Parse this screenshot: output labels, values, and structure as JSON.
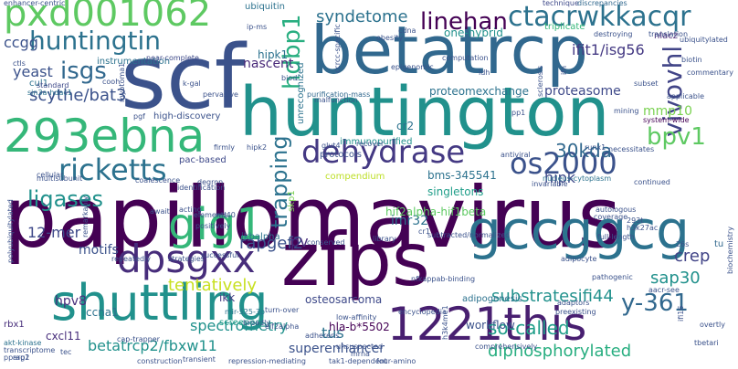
{
  "words": [
    {
      "text": "papillomavirus",
      "color": "#440154"
    },
    {
      "text": "scf",
      "color": "#3b528b"
    },
    {
      "text": "huntington",
      "color": "#21918c"
    },
    {
      "text": "betatrcp",
      "color": "#31688e"
    },
    {
      "text": "zfps",
      "color": "#440154"
    },
    {
      "text": "293ebna",
      "color": "#35b779"
    },
    {
      "text": "shuttling",
      "color": "#21918c"
    },
    {
      "text": "gccggcg",
      "color": "#2c728e"
    },
    {
      "text": "1221this",
      "color": "#481f70"
    },
    {
      "text": "pxd001062",
      "color": "#5ec962"
    },
    {
      "text": "dehydrase",
      "color": "#443983"
    },
    {
      "text": "gig1",
      "color": "#35b779"
    },
    {
      "text": "dpsgxx",
      "color": "#472d7b"
    },
    {
      "text": "ricketts",
      "color": "#2c728e"
    },
    {
      "text": "os2000",
      "color": "#3b528b"
    },
    {
      "text": "huntingtin",
      "color": "#2c728e"
    },
    {
      "text": "ctacrwkkacqr",
      "color": "#2c728e"
    },
    {
      "text": "vivovhl",
      "color": "#414487"
    },
    {
      "text": "linehan",
      "color": "#440154"
    },
    {
      "text": "hdbp1",
      "color": "#28ae80"
    },
    {
      "text": "isgs",
      "color": "#31688e"
    },
    {
      "text": "bpv1",
      "color": "#5ec962"
    },
    {
      "text": "y-361",
      "color": "#31688e"
    },
    {
      "text": "trapping",
      "color": "#2c728e"
    },
    {
      "text": "syndetome",
      "color": "#2c728e"
    },
    {
      "text": "scythe/bat3",
      "color": "#3b528b"
    },
    {
      "text": "ligases",
      "color": "#21918c"
    },
    {
      "text": "tentatively",
      "color": "#c8e020"
    },
    {
      "text": "30kda",
      "color": "#31688e"
    },
    {
      "text": "so-called",
      "color": "#1f9e89"
    },
    {
      "text": "crep",
      "color": "#414487"
    },
    {
      "text": "substratesifi44",
      "color": "#21918c"
    },
    {
      "text": "sap30",
      "color": "#21918c"
    },
    {
      "text": "diphosphorylated",
      "color": "#28ae80"
    },
    {
      "text": "spectrometry",
      "color": "#21918c"
    },
    {
      "text": "rapgef2",
      "color": "#3b528b"
    },
    {
      "text": "betatrcp2/fbxw11",
      "color": "#21918c"
    },
    {
      "text": "ifit1/isg56",
      "color": "#443983"
    },
    {
      "text": "12-mer",
      "color": "#3e4989"
    },
    {
      "text": "motifs",
      "color": "#3b528b"
    },
    {
      "text": "superenhancer",
      "color": "#3b528b"
    },
    {
      "text": "tus",
      "color": "#2c728e"
    },
    {
      "text": "mmp10",
      "color": "#7ad151"
    },
    {
      "text": "hpv8",
      "color": "#472d7b"
    },
    {
      "text": "ccgg",
      "color": "#3b528b"
    },
    {
      "text": "yeast",
      "color": "#3b528b"
    },
    {
      "text": "nascent",
      "color": "#482878"
    },
    {
      "text": "hipk",
      "color": "#3e4989"
    },
    {
      "text": "imr32",
      "color": "#2c728e"
    },
    {
      "text": "hif2alpha-hif1beta",
      "color": "#5ec962"
    },
    {
      "text": "pv",
      "color": "#472d7b"
    },
    {
      "text": "proteasome",
      "color": "#3e4989"
    },
    {
      "text": "proteomexchange",
      "color": "#2c728e"
    },
    {
      "text": "ubiquitin",
      "color": "#2c728e"
    },
    {
      "text": "one-hybrid",
      "color": "#21918c"
    },
    {
      "text": "hipk1",
      "color": "#2c728e"
    },
    {
      "text": "cr2",
      "color": "#2c728e"
    },
    {
      "text": "bms-345541",
      "color": "#2c728e"
    },
    {
      "text": "singletons",
      "color": "#1f9e89"
    },
    {
      "text": "ikk",
      "color": "#443983"
    },
    {
      "text": "ccna1",
      "color": "#2c728e"
    },
    {
      "text": "cxcl11",
      "color": "#472d7b"
    },
    {
      "text": "workflow",
      "color": "#3b528b"
    },
    {
      "text": "osteosarcoma",
      "color": "#3e4989"
    },
    {
      "text": "hla-b*5502",
      "color": "#440154"
    },
    {
      "text": "instrumentation",
      "color": "#2c728e"
    },
    {
      "text": "high-discovery",
      "color": "#3b528b"
    },
    {
      "text": "immunopurified",
      "color": "#21918c"
    },
    {
      "text": "compendium",
      "color": "#bddf26"
    },
    {
      "text": "pac-based",
      "color": "#3e4989"
    },
    {
      "text": "protocols",
      "color": "#3b528b"
    },
    {
      "text": "screened",
      "color": "#1f9e89"
    },
    {
      "text": "adipogenesis",
      "color": "#2c728e"
    },
    {
      "text": "ikbalpha",
      "color": "#2c728e"
    },
    {
      "text": "skp1",
      "color": "#7ad151"
    },
    {
      "text": "enhancer-centric",
      "color": "#3b528b"
    },
    {
      "text": "technique",
      "color": "#3e4989"
    },
    {
      "text": "discrepancies",
      "color": "#31688e"
    },
    {
      "text": "triplicate",
      "color": "#35b779"
    },
    {
      "text": "nlacz",
      "color": "#482878"
    },
    {
      "text": "tu",
      "color": "#31688e"
    },
    {
      "text": "nucleus-cytoplasm",
      "color": "#2c728e"
    },
    {
      "text": "system-wide",
      "color": "#440154"
    },
    {
      "text": "unrecognized",
      "color": "#2c728e"
    },
    {
      "text": "purification-mass",
      "color": "#31688e"
    },
    {
      "text": "near-complete",
      "color": "#3e4989"
    },
    {
      "text": "cul1",
      "color": "#2c728e"
    },
    {
      "text": "ctls",
      "color": "#3b528b"
    },
    {
      "text": "standard",
      "color": "#3e4989"
    },
    {
      "text": "sin3a-hdac1",
      "color": "#2c728e"
    },
    {
      "text": "myotoma1",
      "color": "#3b528b"
    },
    {
      "text": "cooh",
      "color": "#3b528b"
    },
    {
      "text": "biotin",
      "color": "#3b528b"
    },
    {
      "text": "antiviral",
      "color": "#3b528b"
    },
    {
      "text": "subtracted/normalized",
      "color": "#3b528b"
    },
    {
      "text": "encyclopedia",
      "color": "#3b528b"
    },
    {
      "text": "pathogenic",
      "color": "#3b528b"
    },
    {
      "text": "aacr-see",
      "color": "#3b528b"
    },
    {
      "text": "akt-kinase",
      "color": "#2c728e"
    },
    {
      "text": "rbx1",
      "color": "#472d7b"
    },
    {
      "text": "rap1",
      "color": "#3b528b"
    },
    {
      "text": "pparg2",
      "color": "#3b528b"
    },
    {
      "text": "transcriptome",
      "color": "#3b528b"
    },
    {
      "text": "turn-over",
      "color": "#3b528b"
    },
    {
      "text": "mir-525-3p",
      "color": "#2c728e"
    },
    {
      "text": "broadly",
      "color": "#3b528b"
    },
    {
      "text": "cap-trapper",
      "color": "#3b528b"
    },
    {
      "text": "elements",
      "color": "#3b528b"
    },
    {
      "text": "coalescence",
      "color": "#3b528b"
    },
    {
      "text": "cellular",
      "color": "#3b528b"
    },
    {
      "text": "multisubunit",
      "color": "#3b528b"
    },
    {
      "text": "polyubiquitylated",
      "color": "#3b528b"
    },
    {
      "text": "successful",
      "color": "#3b528b"
    },
    {
      "text": "repeatedly",
      "color": "#3b528b"
    },
    {
      "text": "strategies",
      "color": "#3b528b"
    },
    {
      "text": "transient",
      "color": "#3b528b"
    },
    {
      "text": "construction",
      "color": "#3b528b"
    },
    {
      "text": "tak1-dependent",
      "color": "#3b528b"
    },
    {
      "text": "four-amino",
      "color": "#3b528b"
    },
    {
      "text": "repression-mediating",
      "color": "#3b528b"
    },
    {
      "text": "adaptors",
      "color": "#3b528b"
    },
    {
      "text": "preexisting",
      "color": "#3b528b"
    },
    {
      "text": "unsuspected",
      "color": "#3b528b"
    },
    {
      "text": "library",
      "color": "#3b528b"
    },
    {
      "text": "conserved",
      "color": "#3b528b"
    },
    {
      "text": "low-affinity",
      "color": "#3b528b"
    },
    {
      "text": "adherens",
      "color": "#3b528b"
    },
    {
      "text": "wd40",
      "color": "#3b528b"
    },
    {
      "text": "firmly",
      "color": "#3b528b"
    },
    {
      "text": "hipk2",
      "color": "#3b528b"
    },
    {
      "text": "recover",
      "color": "#3b528b"
    },
    {
      "text": "glut4",
      "color": "#3b528b"
    },
    {
      "text": "necessitates",
      "color": "#3b528b"
    },
    {
      "text": "autologous",
      "color": "#3b528b"
    },
    {
      "text": "coverage",
      "color": "#3b528b"
    },
    {
      "text": "invariable",
      "color": "#3b528b"
    },
    {
      "text": "continued",
      "color": "#3b528b"
    },
    {
      "text": "mining",
      "color": "#3b528b"
    },
    {
      "text": "degron",
      "color": "#3b528b"
    },
    {
      "text": "identification",
      "color": "#3b528b"
    },
    {
      "text": "pervasive",
      "color": "#3b528b"
    },
    {
      "text": "k-gal",
      "color": "#3b528b"
    },
    {
      "text": "malfunction",
      "color": "#3b528b"
    },
    {
      "text": "epigenomic",
      "color": "#3b528b"
    },
    {
      "text": "computation",
      "color": "#3b528b"
    },
    {
      "text": "ldh",
      "color": "#3b528b"
    },
    {
      "text": "sclerosis",
      "color": "#3b528b"
    },
    {
      "text": "ifn",
      "color": "#3b528b"
    },
    {
      "text": "subset",
      "color": "#3b528b"
    },
    {
      "text": "applicable",
      "color": "#3b528b"
    },
    {
      "text": "translation",
      "color": "#3b528b"
    },
    {
      "text": "destroying",
      "color": "#3b528b"
    },
    {
      "text": "ubiquitylated",
      "color": "#3b528b"
    },
    {
      "text": "commentary",
      "color": "#3b528b"
    },
    {
      "text": "obesity",
      "color": "#3b528b"
    },
    {
      "text": "cdna",
      "color": "#3b528b"
    },
    {
      "text": "ip-ms",
      "color": "#3b528b"
    },
    {
      "text": "biod",
      "color": "#3b528b"
    },
    {
      "text": "ccrcc-specific",
      "color": "#3b528b"
    },
    {
      "text": "full-length",
      "color": "#3b528b"
    },
    {
      "text": "adipocyte",
      "color": "#3b528b"
    },
    {
      "text": "biochemistry",
      "color": "#3b528b"
    },
    {
      "text": "ifi16",
      "color": "#3b528b"
    },
    {
      "text": "overtly",
      "color": "#3b528b"
    },
    {
      "text": "tbetari",
      "color": "#3b528b"
    },
    {
      "text": "runx1",
      "color": "#3b528b"
    },
    {
      "text": "pp1",
      "color": "#3b528b"
    },
    {
      "text": "cr1",
      "color": "#3b528b"
    },
    {
      "text": "26s",
      "color": "#3b528b"
    },
    {
      "text": "293t",
      "color": "#3b528b"
    },
    {
      "text": "h3k27ac",
      "color": "#3b528b"
    },
    {
      "text": "h3k4me1",
      "color": "#3b528b"
    },
    {
      "text": "nfkappab-binding",
      "color": "#3b528b"
    },
    {
      "text": "eif2alpha",
      "color": "#3b528b"
    },
    {
      "text": "await",
      "color": "#3b528b"
    },
    {
      "text": "pgf",
      "color": "#3b528b"
    },
    {
      "text": "acting",
      "color": "#3b528b"
    },
    {
      "text": "positively",
      "color": "#3b528b"
    },
    {
      "text": "remarkably",
      "color": "#3b528b"
    },
    {
      "text": "comprehensively",
      "color": "#3b528b"
    },
    {
      "text": "mrna",
      "color": "#3b528b"
    },
    {
      "text": "tec",
      "color": "#3b528b"
    },
    {
      "text": "multinucleation",
      "color": "#3b528b"
    }
  ]
}
